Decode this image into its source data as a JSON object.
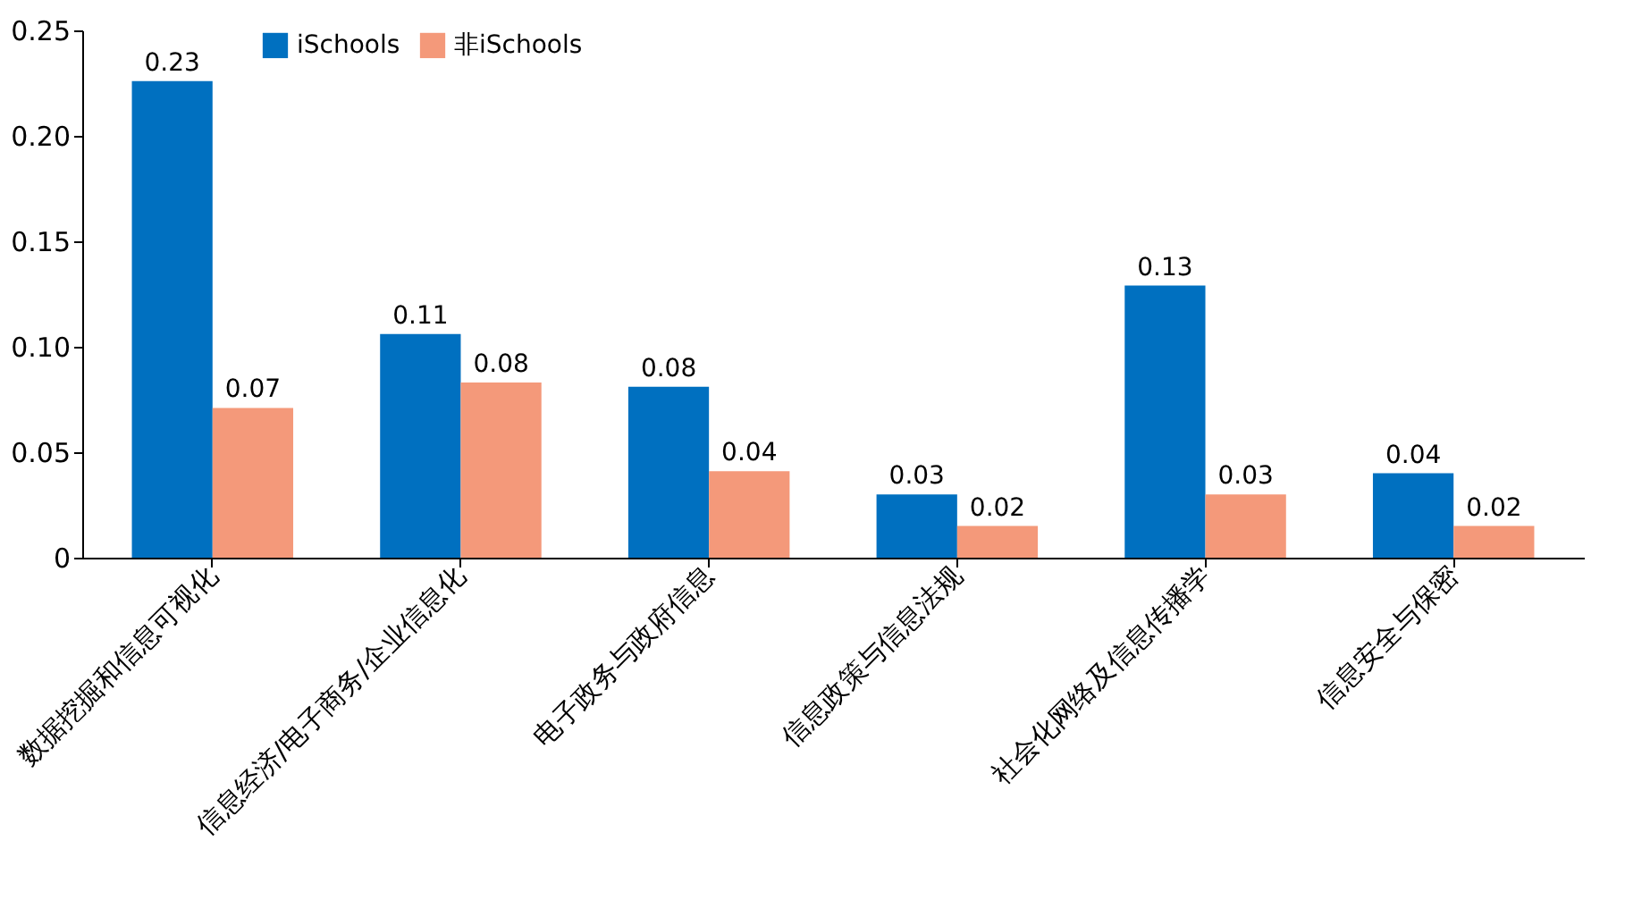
{
  "chart_data": {
    "type": "bar",
    "categories": [
      "数据挖掘和信息可视化",
      "信息经济/电子商务/企业信息化",
      "电子政务与政府信息",
      "信息政策与信息法规",
      "社会化网络及信息传播学",
      "信息安全与保密"
    ],
    "series": [
      {
        "name": "iSchools",
        "color": "#0070c0",
        "values": [
          0.226,
          0.106,
          0.081,
          0.03,
          0.129,
          0.04
        ],
        "value_labels": [
          "0.23",
          "0.11",
          "0.08",
          "0.03",
          "0.13",
          "0.04"
        ]
      },
      {
        "name": "非iSchools",
        "color": "#f4997a",
        "values": [
          0.071,
          0.083,
          0.041,
          0.015,
          0.03,
          0.015
        ],
        "value_labels": [
          "0.07",
          "0.08",
          "0.04",
          "0.02",
          "0.03",
          "0.02"
        ]
      }
    ],
    "ylim": [
      0,
      0.25
    ],
    "yticks": [
      0,
      0.05,
      {
        "value": 0.1,
        "label": "0.10"
      },
      0.15,
      {
        "value": 0.2,
        "label": "0.20"
      },
      0.25
    ],
    "grid": false,
    "legend": "top left"
  }
}
